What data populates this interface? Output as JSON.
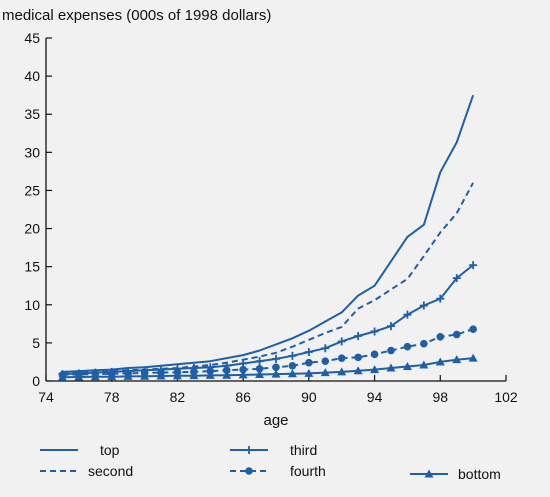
{
  "chart_data": {
    "type": "line",
    "ylabel": "medical expenses (000s of 1998 dollars)",
    "xlabel": "age",
    "xlim": [
      74,
      102
    ],
    "ylim": [
      0,
      45
    ],
    "x_ticks": [
      74,
      78,
      82,
      86,
      90,
      94,
      98,
      102
    ],
    "y_ticks": [
      0,
      5,
      10,
      15,
      20,
      25,
      30,
      35,
      40,
      45
    ],
    "grid": false,
    "legend_position": "bottom",
    "color": "#1f5fa8",
    "x": [
      75,
      76,
      77,
      78,
      79,
      80,
      81,
      82,
      83,
      84,
      85,
      86,
      87,
      88,
      89,
      90,
      91,
      92,
      93,
      94,
      95,
      96,
      97,
      98,
      99,
      100
    ],
    "series": [
      {
        "name": "top",
        "style": "solid",
        "marker": "none",
        "values": [
          1.2,
          1.3,
          1.4,
          1.5,
          1.7,
          1.8,
          2.0,
          2.2,
          2.4,
          2.6,
          3.0,
          3.4,
          4.0,
          4.8,
          5.6,
          6.6,
          7.8,
          9.0,
          11.2,
          12.5,
          15.7,
          18.9,
          20.5,
          27.4,
          31.3,
          37.5
        ]
      },
      {
        "name": "second",
        "style": "dashed",
        "marker": "none",
        "values": [
          1.0,
          1.1,
          1.2,
          1.3,
          1.4,
          1.5,
          1.6,
          1.7,
          1.9,
          2.1,
          2.4,
          2.8,
          3.2,
          3.7,
          4.5,
          5.4,
          6.3,
          7.1,
          9.5,
          10.6,
          12.0,
          13.4,
          16.4,
          19.5,
          22.0,
          26.0
        ]
      },
      {
        "name": "third",
        "style": "solid",
        "marker": "plus",
        "values": [
          0.9,
          1.0,
          1.1,
          1.2,
          1.3,
          1.4,
          1.5,
          1.6,
          1.7,
          1.8,
          2.0,
          2.3,
          2.6,
          2.9,
          3.3,
          3.8,
          4.3,
          5.2,
          5.9,
          6.5,
          7.2,
          8.7,
          9.9,
          10.8,
          13.5,
          15.2
        ]
      },
      {
        "name": "fourth",
        "style": "dashed",
        "marker": "circle",
        "values": [
          0.8,
          0.85,
          0.9,
          0.95,
          1.0,
          1.05,
          1.1,
          1.15,
          1.2,
          1.3,
          1.4,
          1.5,
          1.6,
          1.8,
          2.0,
          2.4,
          2.6,
          3.0,
          3.1,
          3.5,
          4.0,
          4.5,
          4.9,
          5.8,
          6.1,
          6.8
        ]
      },
      {
        "name": "bottom",
        "style": "solid",
        "marker": "triangle",
        "values": [
          0.5,
          0.52,
          0.55,
          0.57,
          0.6,
          0.62,
          0.65,
          0.68,
          0.7,
          0.73,
          0.75,
          0.8,
          0.85,
          0.9,
          0.95,
          1.0,
          1.1,
          1.2,
          1.35,
          1.5,
          1.7,
          1.9,
          2.1,
          2.5,
          2.8,
          3.0
        ]
      }
    ]
  }
}
